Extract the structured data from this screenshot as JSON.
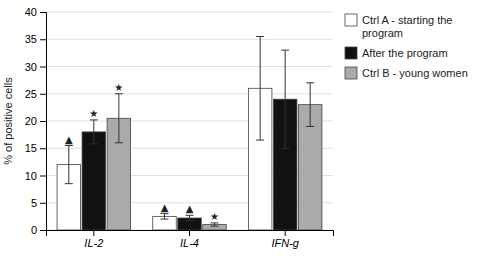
{
  "chart_data": {
    "type": "bar",
    "categories": [
      "IL-2",
      "IL-4",
      "IFN-g"
    ],
    "series": [
      {
        "name": "Ctrl A - starting the\nprogram",
        "color": "#ffffff",
        "values": [
          12.0,
          2.5,
          26.0
        ],
        "errors": [
          3.5,
          0.5,
          9.5
        ]
      },
      {
        "name": "After the program",
        "color": "#111111",
        "values": [
          18.0,
          2.2,
          24.0
        ],
        "errors": [
          2.2,
          0.5,
          9.0
        ]
      },
      {
        "name": "Ctrl B - young women",
        "color": "#aaaaaa",
        "values": [
          20.5,
          1.0,
          23.0
        ],
        "errors": [
          4.5,
          0.3,
          4.0
        ]
      }
    ],
    "ylabel": "% of positive cells",
    "ylim": [
      0,
      40
    ],
    "yticks": [
      0,
      5,
      10,
      15,
      20,
      25,
      30,
      35,
      40
    ],
    "grid": true,
    "legend": "upper right",
    "annotations": [
      {
        "text": "▲",
        "category": "IL-2",
        "series": "Ctrl A - starting the\nprogram"
      },
      {
        "text": "★",
        "category": "IL-2",
        "series": "After the program"
      },
      {
        "text": "★",
        "category": "IL-2",
        "series": "Ctrl B - young women"
      },
      {
        "text": "▲",
        "category": "IL-4",
        "series": "Ctrl A - starting the\nprogram"
      },
      {
        "text": "▲",
        "category": "IL-4",
        "series": "After the program"
      },
      {
        "text": "★",
        "category": "IL-4",
        "series": "Ctrl B - young women"
      }
    ]
  }
}
